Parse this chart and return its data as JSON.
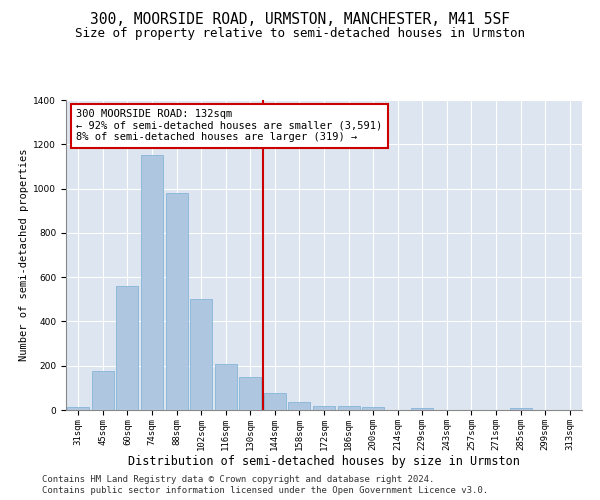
{
  "title": "300, MOORSIDE ROAD, URMSTON, MANCHESTER, M41 5SF",
  "subtitle": "Size of property relative to semi-detached houses in Urmston",
  "xlabel": "Distribution of semi-detached houses by size in Urmston",
  "ylabel": "Number of semi-detached properties",
  "categories": [
    "31sqm",
    "45sqm",
    "60sqm",
    "74sqm",
    "88sqm",
    "102sqm",
    "116sqm",
    "130sqm",
    "144sqm",
    "158sqm",
    "172sqm",
    "186sqm",
    "200sqm",
    "214sqm",
    "229sqm",
    "243sqm",
    "257sqm",
    "271sqm",
    "285sqm",
    "299sqm",
    "313sqm"
  ],
  "values": [
    15,
    175,
    560,
    1150,
    980,
    500,
    210,
    150,
    75,
    35,
    20,
    18,
    12,
    0,
    10,
    0,
    0,
    0,
    8,
    0,
    0
  ],
  "bar_color": "#aec6e0",
  "bar_edgecolor": "#7aafd4",
  "vline_x": 7.5,
  "vline_color": "#cc0000",
  "annotation_text": "300 MOORSIDE ROAD: 132sqm\n← 92% of semi-detached houses are smaller (3,591)\n8% of semi-detached houses are larger (319) →",
  "annotation_box_facecolor": "#ffffff",
  "annotation_box_edgecolor": "#cc0000",
  "ylim": [
    0,
    1400
  ],
  "yticks": [
    0,
    200,
    400,
    600,
    800,
    1000,
    1200,
    1400
  ],
  "bg_color": "#dde6f0",
  "footer_line1": "Contains HM Land Registry data © Crown copyright and database right 2024.",
  "footer_line2": "Contains public sector information licensed under the Open Government Licence v3.0.",
  "title_fontsize": 10.5,
  "subtitle_fontsize": 9,
  "xlabel_fontsize": 8.5,
  "ylabel_fontsize": 7.5,
  "tick_fontsize": 6.5,
  "annotation_fontsize": 7.5,
  "footer_fontsize": 6.5
}
